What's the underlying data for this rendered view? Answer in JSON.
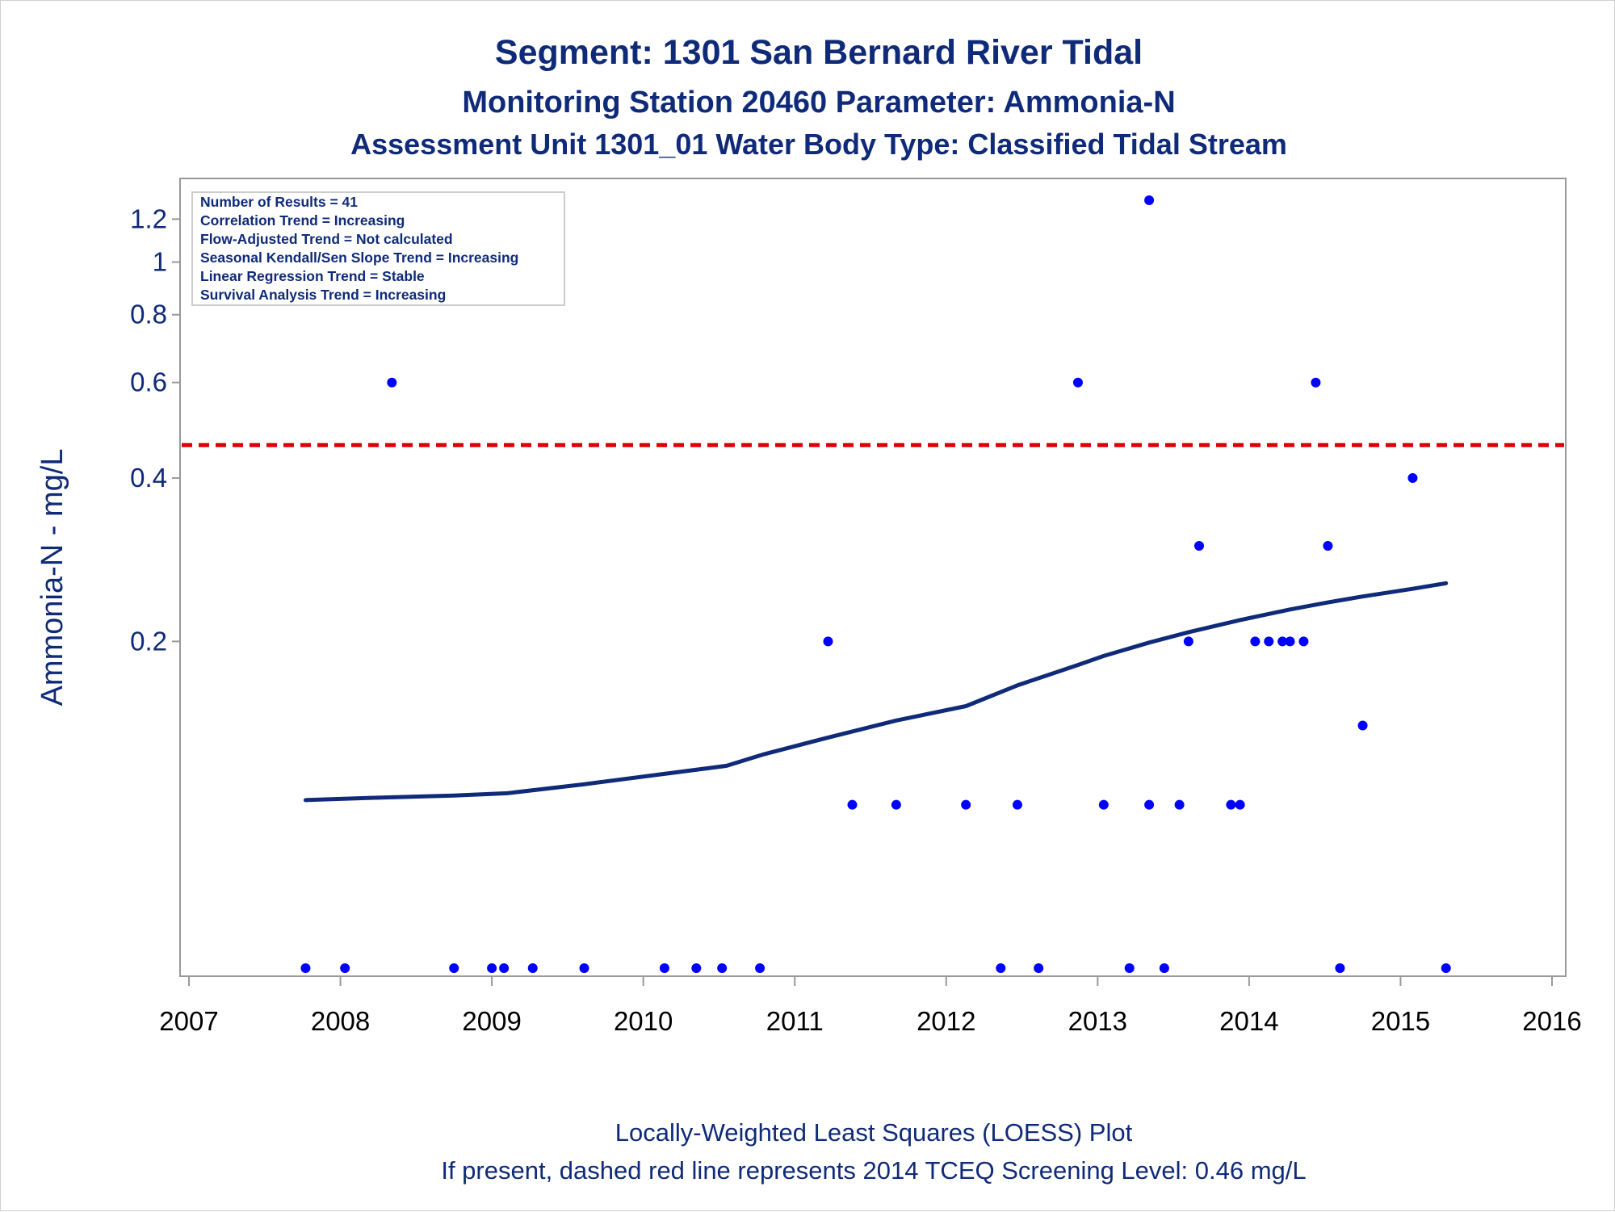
{
  "chart_data": {
    "type": "scatter",
    "title": "Segment: 1301  San Bernard River Tidal",
    "subtitle_1": "Monitoring Station 20460 Parameter: Ammonia-N",
    "subtitle_2": "Assessment Unit 1301_01   Water Body Type: Classified Tidal Stream",
    "xlabel": "",
    "ylabel": "Ammonia-N - mg/L",
    "y_scale": "log",
    "xlim": [
      2007,
      2016
    ],
    "ylim": [
      0.05,
      1.35
    ],
    "x_ticks": [
      2007,
      2008,
      2009,
      2010,
      2011,
      2012,
      2013,
      2014,
      2015,
      2016
    ],
    "y_ticks": [
      0.2,
      0.4,
      0.6,
      0.8,
      1,
      1.2
    ],
    "y_tick_labels": [
      "0.2",
      "0.4",
      "0.6",
      "0.8",
      "1",
      "1.2"
    ],
    "grid": false,
    "colors": {
      "points": "#0000ff",
      "loess": "#0f2a78",
      "screening_line": "#dd0000",
      "text": "#0f2a78",
      "frame": "#999999"
    },
    "points": [
      {
        "x": 2007.77,
        "y": 0.05
      },
      {
        "x": 2008.03,
        "y": 0.05
      },
      {
        "x": 2008.34,
        "y": 0.6
      },
      {
        "x": 2008.75,
        "y": 0.05
      },
      {
        "x": 2009.0,
        "y": 0.05
      },
      {
        "x": 2009.08,
        "y": 0.05
      },
      {
        "x": 2009.27,
        "y": 0.05
      },
      {
        "x": 2009.61,
        "y": 0.05
      },
      {
        "x": 2010.14,
        "y": 0.05
      },
      {
        "x": 2010.35,
        "y": 0.05
      },
      {
        "x": 2010.52,
        "y": 0.05
      },
      {
        "x": 2010.77,
        "y": 0.05
      },
      {
        "x": 2011.22,
        "y": 0.2
      },
      {
        "x": 2011.38,
        "y": 0.1
      },
      {
        "x": 2011.67,
        "y": 0.1
      },
      {
        "x": 2012.13,
        "y": 0.1
      },
      {
        "x": 2012.36,
        "y": 0.05
      },
      {
        "x": 2012.47,
        "y": 0.1
      },
      {
        "x": 2012.61,
        "y": 0.05
      },
      {
        "x": 2012.87,
        "y": 0.6
      },
      {
        "x": 2013.04,
        "y": 0.1
      },
      {
        "x": 2013.21,
        "y": 0.05
      },
      {
        "x": 2013.34,
        "y": 0.1
      },
      {
        "x": 2013.34,
        "y": 1.3
      },
      {
        "x": 2013.44,
        "y": 0.05
      },
      {
        "x": 2013.54,
        "y": 0.1
      },
      {
        "x": 2013.6,
        "y": 0.2
      },
      {
        "x": 2013.67,
        "y": 0.3
      },
      {
        "x": 2013.88,
        "y": 0.1
      },
      {
        "x": 2013.94,
        "y": 0.1
      },
      {
        "x": 2014.04,
        "y": 0.2
      },
      {
        "x": 2014.13,
        "y": 0.2
      },
      {
        "x": 2014.22,
        "y": 0.2
      },
      {
        "x": 2014.27,
        "y": 0.2
      },
      {
        "x": 2014.36,
        "y": 0.2
      },
      {
        "x": 2014.44,
        "y": 0.6
      },
      {
        "x": 2014.52,
        "y": 0.3
      },
      {
        "x": 2014.6,
        "y": 0.05
      },
      {
        "x": 2014.75,
        "y": 0.14
      },
      {
        "x": 2015.08,
        "y": 0.4
      },
      {
        "x": 2015.3,
        "y": 0.05
      }
    ],
    "loess_curve": [
      {
        "x": 2007.77,
        "y": 0.102
      },
      {
        "x": 2008.2,
        "y": 0.103
      },
      {
        "x": 2008.75,
        "y": 0.104
      },
      {
        "x": 2009.1,
        "y": 0.105
      },
      {
        "x": 2009.6,
        "y": 0.109
      },
      {
        "x": 2010.14,
        "y": 0.114
      },
      {
        "x": 2010.55,
        "y": 0.118
      },
      {
        "x": 2010.8,
        "y": 0.124
      },
      {
        "x": 2011.22,
        "y": 0.133
      },
      {
        "x": 2011.67,
        "y": 0.143
      },
      {
        "x": 2012.13,
        "y": 0.152
      },
      {
        "x": 2012.47,
        "y": 0.166
      },
      {
        "x": 2012.87,
        "y": 0.181
      },
      {
        "x": 2013.04,
        "y": 0.188
      },
      {
        "x": 2013.34,
        "y": 0.199
      },
      {
        "x": 2013.6,
        "y": 0.208
      },
      {
        "x": 2013.94,
        "y": 0.219
      },
      {
        "x": 2014.27,
        "y": 0.229
      },
      {
        "x": 2014.52,
        "y": 0.236
      },
      {
        "x": 2014.75,
        "y": 0.242
      },
      {
        "x": 2015.08,
        "y": 0.25
      },
      {
        "x": 2015.3,
        "y": 0.256
      }
    ],
    "screening_level": 0.46,
    "stats_box": [
      "Number of Results = 41",
      "Correlation Trend = Increasing",
      "Flow-Adjusted Trend = Not calculated",
      "Seasonal Kendall/Sen Slope Trend = Increasing",
      "Linear Regression Trend = Stable",
      "Survival Analysis Trend = Increasing"
    ],
    "footnotes": [
      "Locally-Weighted Least Squares (LOESS) Plot",
      "If present, dashed red line represents 2014 TCEQ Screening Level: 0.46 mg/L"
    ]
  }
}
